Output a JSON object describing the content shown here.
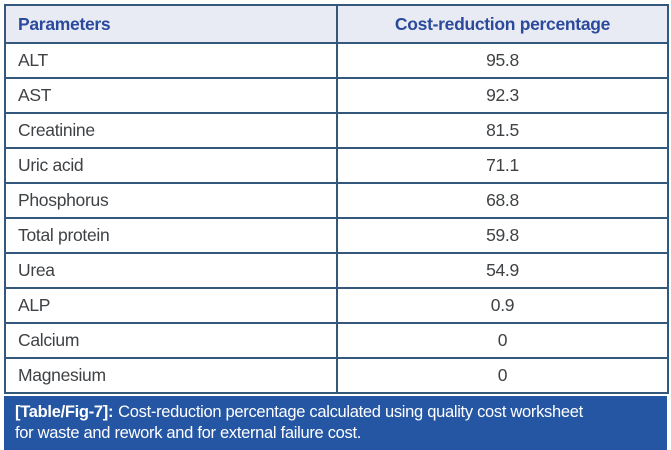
{
  "figure": {
    "table": {
      "headers": [
        "Parameters",
        "Cost-reduction percentage"
      ],
      "rows": [
        {
          "parameter": "ALT",
          "value": "95.8"
        },
        {
          "parameter": "AST",
          "value": "92.3"
        },
        {
          "parameter": "Creatinine",
          "value": "81.5"
        },
        {
          "parameter": "Uric acid",
          "value": "71.1"
        },
        {
          "parameter": "Phosphorus",
          "value": "68.8"
        },
        {
          "parameter": "Total protein",
          "value": "59.8"
        },
        {
          "parameter": "Urea",
          "value": "54.9"
        },
        {
          "parameter": "ALP",
          "value": "0.9"
        },
        {
          "parameter": "Calcium",
          "value": "0"
        },
        {
          "parameter": "Magnesium",
          "value": "0"
        }
      ]
    },
    "caption": {
      "label": "[Table/Fig-7]:",
      "text_line1": "Cost-reduction percentage calculated using quality cost worksheet",
      "text_line2": "for waste and rework and for external failure cost."
    },
    "colors": {
      "border": "#34587c",
      "header_bg": "#e9ebf4",
      "header_text": "#2b4a9b",
      "body_text": "#3f4245",
      "caption_bg": "#2456a4",
      "caption_text": "#ffffff"
    }
  }
}
